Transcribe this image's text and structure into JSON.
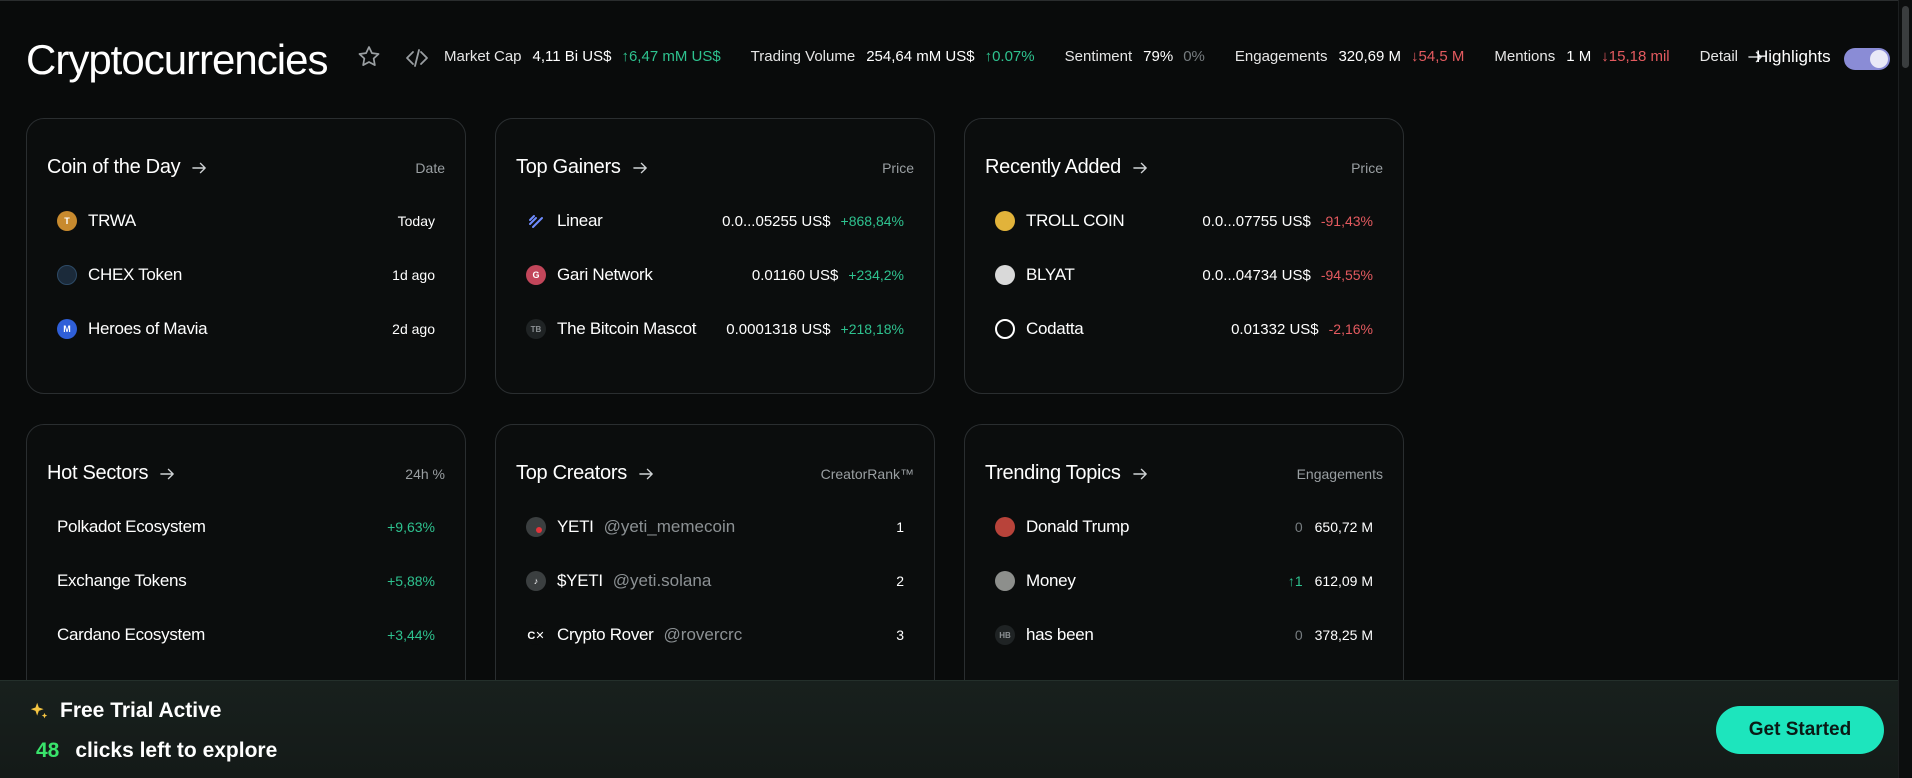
{
  "header": {
    "title": "Cryptocurrencies",
    "stats": [
      {
        "label": "Market Cap",
        "value": "4,11 Bi US$",
        "change": "↑6,47 mM US$",
        "dir": "up"
      },
      {
        "label": "Trading Volume",
        "value": "254,64 mM US$",
        "change": "↑0.07%",
        "dir": "up"
      },
      {
        "label": "Sentiment",
        "value": "79%",
        "change": "0%",
        "dir": "neutral"
      },
      {
        "label": "Engagements",
        "value": "320,69 M",
        "change": "↓54,5 M",
        "dir": "down"
      },
      {
        "label": "Mentions",
        "value": "1 M",
        "change": "↓15,18 mil",
        "dir": "down"
      }
    ],
    "detail_label": "Detail",
    "highlights_label": "Highlights",
    "highlights_on": true
  },
  "cards": {
    "coin_of_day": {
      "title": "Coin of the Day",
      "column": "Date",
      "rows": [
        {
          "name": "TRWA",
          "date": "Today",
          "icon": "trwa-coin-icon",
          "color": "#c88a2e"
        },
        {
          "name": "CHEX Token",
          "date": "1d ago",
          "icon": "chex-coin-icon",
          "color": "#1b2a3a"
        },
        {
          "name": "Heroes of Mavia",
          "date": "2d ago",
          "icon": "mavia-coin-icon",
          "color": "#2f5fd8"
        }
      ]
    },
    "top_gainers": {
      "title": "Top Gainers",
      "column": "Price",
      "rows": [
        {
          "name": "Linear",
          "price": "0.0...05255 US$",
          "change": "+868,84%",
          "icon": "linear-coin-icon",
          "color": "#3b5bdc"
        },
        {
          "name": "Gari Network",
          "price": "0.01160 US$",
          "change": "+234,2%",
          "icon": "gari-coin-icon",
          "color": "#c2465a"
        },
        {
          "name": "The Bitcoin Mascot",
          "price": "0.0001318 US$",
          "change": "+218,18%",
          "icon": "bitcoin-mascot-coin-icon",
          "color": "#1f2324"
        }
      ]
    },
    "recently_added": {
      "title": "Recently Added",
      "column": "Price",
      "rows": [
        {
          "name": "TROLL COIN",
          "price": "0.0...07755 US$",
          "change": "-91,43%",
          "icon": "troll-coin-icon",
          "color": "#e2b33a"
        },
        {
          "name": "BLYAT",
          "price": "0.0...04734 US$",
          "change": "-94,55%",
          "icon": "blyat-coin-icon",
          "color": "#d9d9d9"
        },
        {
          "name": "Codatta",
          "price": "0.01332 US$",
          "change": "-2,16%",
          "icon": "codatta-coin-icon",
          "color": "#0b0d0d"
        }
      ]
    },
    "hot_sectors": {
      "title": "Hot Sectors",
      "column": "24h %",
      "rows": [
        {
          "name": "Polkadot Ecosystem",
          "change": "+9,63%"
        },
        {
          "name": "Exchange Tokens",
          "change": "+5,88%"
        },
        {
          "name": "Cardano Ecosystem",
          "change": "+3,44%"
        }
      ]
    },
    "top_creators": {
      "title": "Top Creators",
      "column": "CreatorRank™",
      "rows": [
        {
          "name": "YETI",
          "handle": "@yeti_memecoin",
          "rank": "1",
          "icon": "yeti-avatar-icon",
          "color": "#3b3f40"
        },
        {
          "name": "$YETI",
          "handle": "@yeti.solana",
          "rank": "2",
          "icon": "tiktok-yeti-avatar-icon",
          "color": "#3b3f40"
        },
        {
          "name": "Crypto Rover",
          "handle": "@rovercrc",
          "rank": "3",
          "icon": "crypto-rover-avatar-icon",
          "color": "#0b0d0d"
        }
      ]
    },
    "trending_topics": {
      "title": "Trending Topics",
      "column": "Engagements",
      "rows": [
        {
          "name": "Donald Trump",
          "delta": "0",
          "dir": "neutral",
          "value": "650,72 M",
          "icon": "trump-topic-icon",
          "color": "#b8433a"
        },
        {
          "name": "Money",
          "delta": "↑1",
          "dir": "up",
          "value": "612,09 M",
          "icon": "money-topic-icon",
          "color": "#8d8f8c"
        },
        {
          "name": "has been",
          "delta": "0",
          "dir": "neutral",
          "value": "378,25 M",
          "icon": "has-been-topic-icon",
          "color": "#1f2324"
        }
      ]
    }
  },
  "banner": {
    "title": "Free Trial Active",
    "count": "48",
    "subtitle": "clicks left to explore",
    "cta": "Get Started"
  },
  "colors": {
    "background": "#090b0b",
    "up": "#2ec28f",
    "down": "#e35a5f",
    "cta": "#1de5bd",
    "count": "#39e36b",
    "toggle": "#8a8cd6"
  }
}
